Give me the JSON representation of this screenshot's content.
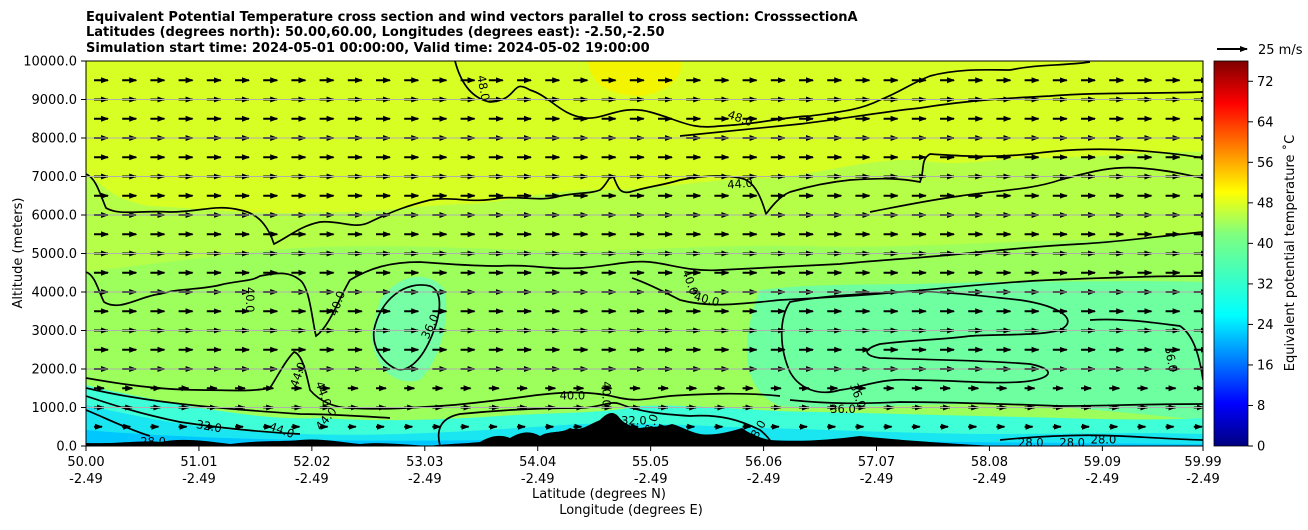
{
  "chart_data": {
    "type": "heatmap",
    "subtype": "filled-contour cross section with wind vectors",
    "title_lines": [
      "Equivalent Potential Temperature cross section and wind vectors parallel to cross section: CrosssectionA",
      "Latitudes (degrees north): 50.00,60.00, Longitudes (degrees east): -2.50,-2.50",
      "Simulation start time: 2024-05-01 00:00:00, Valid time: 2024-05-02 19:00:00"
    ],
    "ylabel": "Altitude (meters)",
    "xlabel_lines": [
      "Latitude (degrees N)",
      "Longitude (degrees E)"
    ],
    "x_range": [
      50.0,
      59.99
    ],
    "ylim": [
      0,
      10000
    ],
    "yticks": [
      0,
      1000,
      2000,
      3000,
      4000,
      5000,
      6000,
      7000,
      8000,
      9000,
      10000
    ],
    "ytick_labels": [
      "0.0",
      "1000.0",
      "2000.0",
      "3000.0",
      "4000.0",
      "5000.0",
      "6000.0",
      "7000.0",
      "8000.0",
      "9000.0",
      "10000.0"
    ],
    "xticks": [
      {
        "lat": "50.00",
        "lon": "-2.49"
      },
      {
        "lat": "51.01",
        "lon": "-2.49"
      },
      {
        "lat": "52.02",
        "lon": "-2.49"
      },
      {
        "lat": "53.03",
        "lon": "-2.49"
      },
      {
        "lat": "54.04",
        "lon": "-2.49"
      },
      {
        "lat": "55.05",
        "lon": "-2.49"
      },
      {
        "lat": "56.06",
        "lon": "-2.49"
      },
      {
        "lat": "57.07",
        "lon": "-2.49"
      },
      {
        "lat": "58.08",
        "lon": "-2.49"
      },
      {
        "lat": "59.09",
        "lon": "-2.49"
      },
      {
        "lat": "59.99",
        "lon": "-2.49"
      }
    ],
    "horizontal_gridlines": true,
    "colorbar": {
      "label": "Equivalent potential temperature $^\\circ$C",
      "label_display": "Equivalent potential temperature ˚C",
      "range": [
        0,
        76
      ],
      "ticks": [
        0,
        8,
        16,
        24,
        32,
        40,
        48,
        56,
        64,
        72
      ],
      "colormap": "jet"
    },
    "quiver_key": {
      "label": "25 m/s",
      "speed": 25
    },
    "contour_labels": [
      {
        "text": "48.0",
        "lat": 53.55,
        "alt": 9300,
        "rot": 80
      },
      {
        "text": "48.0",
        "lat": 55.85,
        "alt": 8500,
        "rot": 20
      },
      {
        "text": "44.0",
        "lat": 55.85,
        "alt": 6800,
        "rot": -5
      },
      {
        "text": "40.0",
        "lat": 51.46,
        "alt": 3800,
        "rot": 90
      },
      {
        "text": "40.0",
        "lat": 52.25,
        "alt": 3700,
        "rot": -70
      },
      {
        "text": "36.0",
        "lat": 53.08,
        "alt": 3100,
        "rot": -65
      },
      {
        "text": "40.0",
        "lat": 55.4,
        "alt": 4250,
        "rot": 70
      },
      {
        "text": "40.0",
        "lat": 55.55,
        "alt": 3800,
        "rot": 15
      },
      {
        "text": "44.0",
        "lat": 51.9,
        "alt": 1850,
        "rot": -70
      },
      {
        "text": "44.0",
        "lat": 52.12,
        "alt": 1350,
        "rot": 70
      },
      {
        "text": "44.0",
        "lat": 51.75,
        "alt": 400,
        "rot": 20
      },
      {
        "text": "44.0",
        "lat": 52.15,
        "alt": 700,
        "rot": -50
      },
      {
        "text": "32.0",
        "lat": 51.1,
        "alt": 500,
        "rot": 10
      },
      {
        "text": "28.0",
        "lat": 50.6,
        "alt": 100,
        "rot": 0
      },
      {
        "text": "40.0",
        "lat": 54.35,
        "alt": 1300,
        "rot": 0
      },
      {
        "text": "40.0",
        "lat": 54.65,
        "alt": 1350,
        "rot": 90
      },
      {
        "text": "32.0",
        "lat": 54.9,
        "alt": 650,
        "rot": 0
      },
      {
        "text": "28.0",
        "lat": 55.05,
        "alt": 500,
        "rot": -70
      },
      {
        "text": "36.0",
        "lat": 56.77,
        "alt": 950,
        "rot": 0
      },
      {
        "text": "36.0",
        "lat": 56.9,
        "alt": 1300,
        "rot": 70
      },
      {
        "text": "36.0",
        "lat": 59.7,
        "alt": 2250,
        "rot": 80
      },
      {
        "text": "28.0",
        "lat": 56.0,
        "alt": 350,
        "rot": -60
      },
      {
        "text": "28.0",
        "lat": 58.45,
        "alt": 80,
        "rot": 0
      },
      {
        "text": "28.0",
        "lat": 58.82,
        "alt": 80,
        "rot": 0
      },
      {
        "text": "28.0",
        "lat": 59.1,
        "alt": 150,
        "rot": 0
      }
    ]
  }
}
